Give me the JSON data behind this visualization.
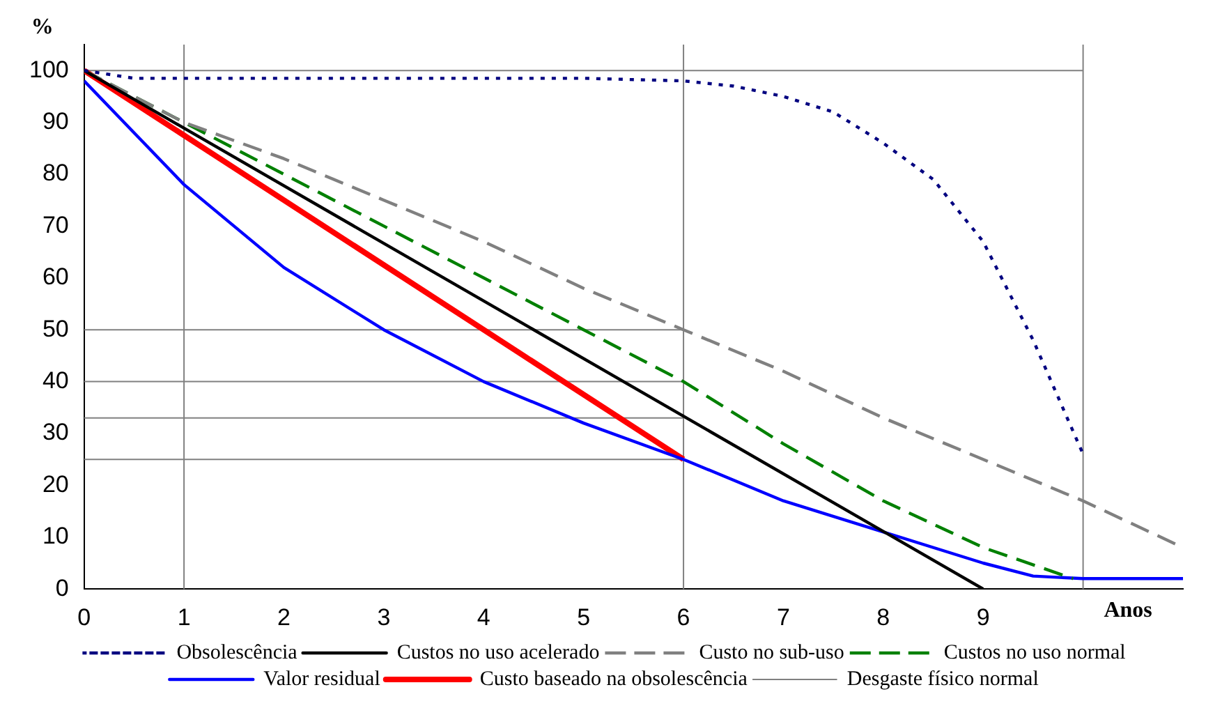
{
  "chart_data": {
    "type": "line",
    "xlabel": "Anos",
    "ylabel": "%",
    "xlim": [
      0,
      11
    ],
    "ylim": [
      0,
      105
    ],
    "xticks": [
      0,
      1,
      2,
      3,
      4,
      5,
      6,
      7,
      8,
      9,
      {
        "value": 10,
        "label": null
      }
    ],
    "yticks": [
      0,
      10,
      20,
      30,
      40,
      50,
      60,
      70,
      80,
      90,
      100
    ],
    "grid": false,
    "legend": "bottom",
    "marker": "none",
    "series": [
      {
        "name": "Obsolescência",
        "color": "#000080",
        "line_style": "dotted",
        "x": [
          0,
          0.5,
          1,
          2,
          3,
          4,
          5,
          6,
          6.5,
          7,
          7.5,
          8,
          8.5,
          9,
          9.5,
          10
        ],
        "values": [
          100,
          98.5,
          98.5,
          98.5,
          98.5,
          98.5,
          98.5,
          98,
          97,
          95,
          92,
          86,
          79,
          67,
          48,
          26
        ]
      },
      {
        "name": "Custos no uso acelerado",
        "color": "#000000",
        "line_style": "solid",
        "x": [
          0,
          9
        ],
        "values": [
          100,
          0
        ]
      },
      {
        "name": "Custo no sub-uso",
        "color": "#808080",
        "line_style": "dashed",
        "x": [
          0,
          1,
          2,
          3,
          4,
          5,
          6,
          7,
          8,
          9,
          10,
          11
        ],
        "values": [
          100,
          90,
          83,
          75,
          67,
          58,
          50,
          42,
          33,
          25,
          17,
          8
        ]
      },
      {
        "name": "Custos no uso normal",
        "color": "#008000",
        "line_style": "dashed",
        "x": [
          0,
          1,
          2,
          3,
          4,
          5,
          6,
          7,
          8,
          9,
          9.9
        ],
        "values": [
          100,
          90,
          80,
          70,
          60,
          50,
          40,
          28,
          17,
          8,
          2
        ]
      },
      {
        "name": "Valor residual",
        "color": "#0000ff",
        "line_style": "solid",
        "x": [
          0,
          0.5,
          1,
          1.5,
          2,
          3,
          4,
          5,
          6,
          7,
          8,
          9,
          9.5,
          10,
          11
        ],
        "values": [
          98,
          88,
          78,
          70,
          62,
          50,
          40,
          32,
          25,
          17,
          11,
          5,
          2.5,
          2,
          2
        ]
      },
      {
        "name": "Custo baseado na obsolescência",
        "color": "#ff0000",
        "line_style": "solid",
        "x": [
          0,
          6
        ],
        "values": [
          100,
          25
        ]
      },
      {
        "name": "Desgaste físico normal",
        "color": "#808080",
        "line_style": "solid",
        "x": [
          0,
          10
        ],
        "values": [
          100,
          100
        ]
      },
      {
        "color": "#808080",
        "line_style": "solid",
        "x": [
          0,
          6
        ],
        "values": [
          50,
          50
        ]
      },
      {
        "color": "#808080",
        "line_style": "solid",
        "x": [
          0,
          6
        ],
        "values": [
          40,
          40
        ]
      },
      {
        "color": "#808080",
        "line_style": "solid",
        "x": [
          0,
          6
        ],
        "values": [
          33,
          33
        ]
      },
      {
        "color": "#808080",
        "line_style": "solid",
        "x": [
          0,
          6
        ],
        "values": [
          25,
          25
        ]
      }
    ],
    "ref_lines": [
      {
        "axis": "x",
        "value": 1,
        "color": "#808080"
      },
      {
        "axis": "x",
        "value": 6,
        "color": "#808080"
      },
      {
        "axis": "x",
        "value": 10,
        "color": "#808080"
      }
    ]
  }
}
